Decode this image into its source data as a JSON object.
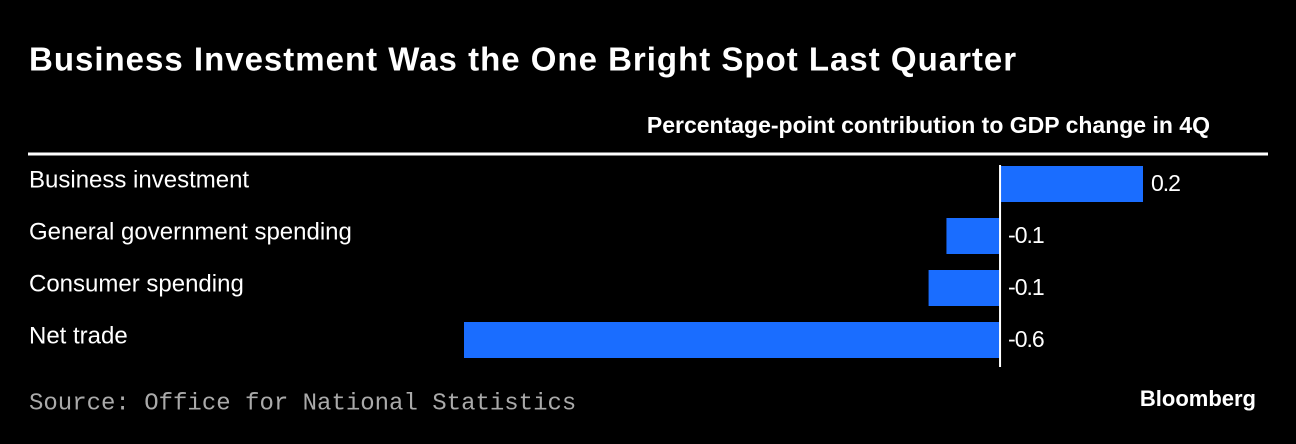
{
  "chart_data": {
    "type": "hbar",
    "title": "Business Investment Was the One Bright Spot Last Quarter",
    "subtitle": "Percentage-point contribution to GDP change in 4Q",
    "categories": [
      "Business investment",
      "General government spending",
      "Consumer spending",
      "Net trade"
    ],
    "values": [
      0.16,
      -0.06,
      -0.08,
      -0.6
    ],
    "value_labels": [
      "0.2",
      "-0.1",
      "-0.1",
      "-0.6"
    ],
    "color": "#1a6dff",
    "xlim": [
      -0.6,
      0.16
    ],
    "source": "Source: Office for National Statistics",
    "logo": "Bloomberg"
  }
}
